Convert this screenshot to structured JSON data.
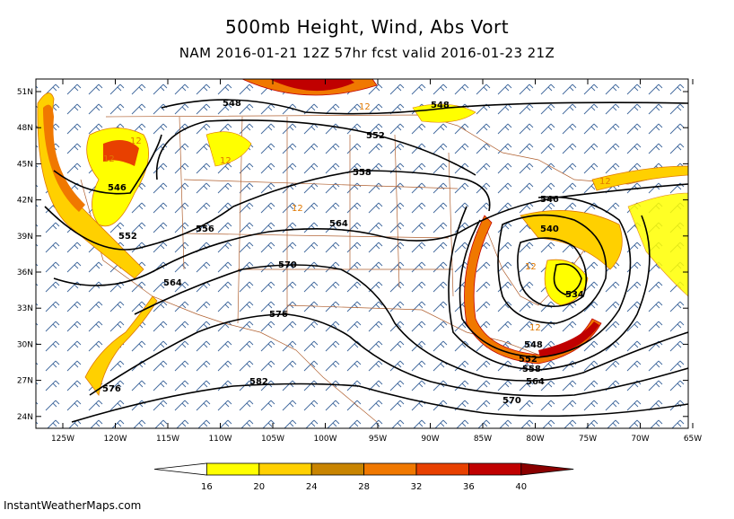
{
  "title": "500mb Height, Wind, Abs Vort",
  "subtitle": "NAM 2016-01-21 12Z 57hr fcst valid 2016-01-23 21Z",
  "footer": "InstantWeatherMaps.com",
  "lat_labels": [
    "51N",
    "48N",
    "45N",
    "42N",
    "39N",
    "36N",
    "33N",
    "30N",
    "27N",
    "24N"
  ],
  "lon_labels": [
    "125W",
    "120W",
    "115W",
    "110W",
    "105W",
    "100W",
    "95W",
    "90W",
    "85W",
    "80W",
    "75W",
    "70W",
    "65W"
  ],
  "height_labels": [
    "548",
    "548",
    "552",
    "558",
    "546",
    "552",
    "556",
    "564",
    "570",
    "564",
    "576",
    "576",
    "582",
    "546",
    "540",
    "534",
    "548",
    "552",
    "558",
    "564",
    "570"
  ],
  "vort_label": "12",
  "colorbar": {
    "ticks": [
      "16",
      "20",
      "24",
      "28",
      "32",
      "36",
      "40"
    ],
    "colors": [
      "#ffffff",
      "#ffff00",
      "#ffd000",
      "#c88400",
      "#f07800",
      "#e84000",
      "#c00000",
      "#8a0000"
    ]
  },
  "colors": {
    "height": "#000000",
    "wind": "#1f4e8c",
    "border": "#b06030",
    "vort_outline": "#e07800"
  }
}
